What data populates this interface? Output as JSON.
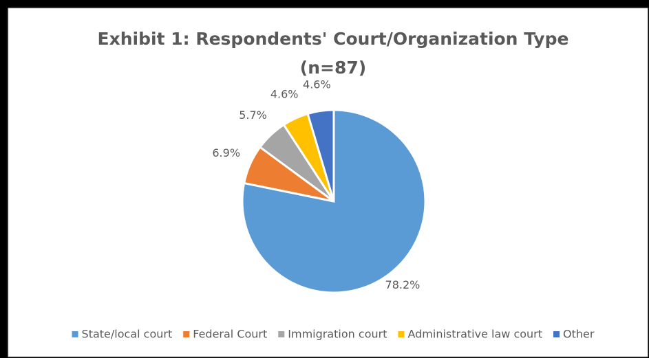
{
  "chart_data": {
    "type": "pie",
    "title": "Exhibit 1: Respondents' Court/Organization Type",
    "subtitle": "(n=87)",
    "categories": [
      "State/local court",
      "Federal Court",
      "Immigration court",
      "Administrative law court",
      "Other"
    ],
    "values": [
      78.2,
      6.9,
      5.7,
      4.6,
      4.6
    ],
    "value_labels": [
      "78.2%",
      "6.9%",
      "5.7%",
      "4.6%",
      "4.6%"
    ],
    "colors": [
      "#5b9bd5",
      "#ed7d31",
      "#a5a5a5",
      "#ffc000",
      "#4472c4"
    ],
    "legend": "bottom"
  }
}
